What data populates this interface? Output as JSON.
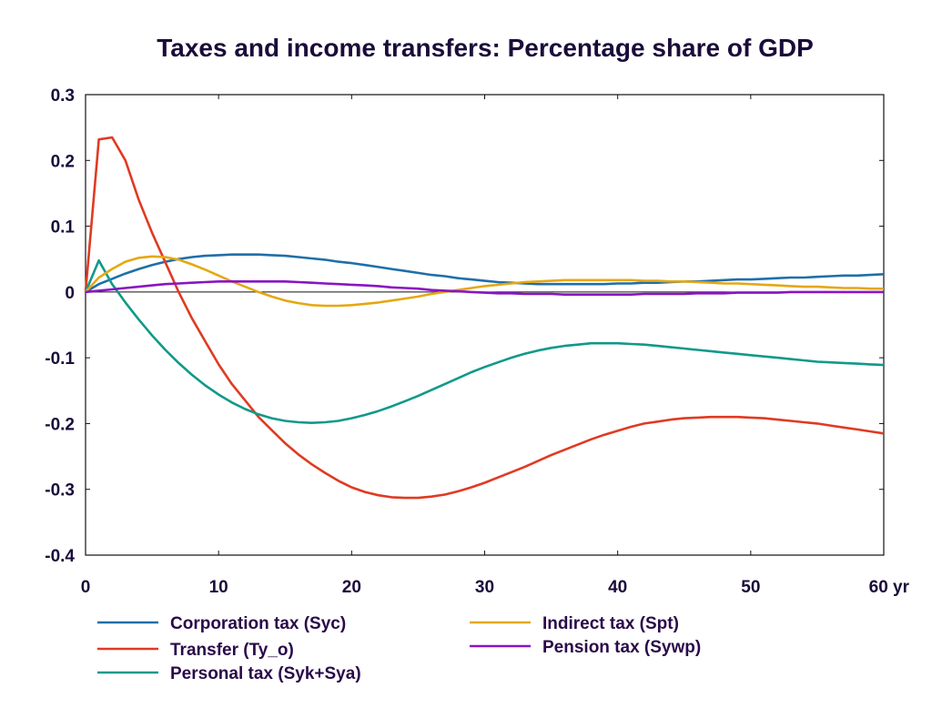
{
  "chart_data": {
    "type": "line",
    "title": "Taxes and income transfers: Percentage share of GDP",
    "xlabel": "",
    "ylabel": "",
    "xlim": [
      0,
      60
    ],
    "ylim": [
      -0.4,
      0.3
    ],
    "x_ticks": [
      0,
      10,
      20,
      30,
      40,
      50,
      60
    ],
    "x_tick_labels": [
      "0",
      "10",
      "20",
      "30",
      "40",
      "50",
      "60 yr"
    ],
    "y_ticks": [
      0.3,
      0.2,
      0.1,
      0,
      -0.1,
      -0.2,
      -0.3,
      -0.4
    ],
    "y_tick_labels": [
      "0.3",
      "0.2",
      "0.1",
      "0",
      "-0.1",
      "-0.2",
      "-0.3",
      "-0.4"
    ],
    "zero_line": true,
    "grid": false,
    "legend_position": "bottom",
    "x": [
      0,
      1,
      2,
      3,
      4,
      5,
      6,
      7,
      8,
      9,
      10,
      11,
      12,
      13,
      14,
      15,
      16,
      17,
      18,
      19,
      20,
      21,
      22,
      23,
      24,
      25,
      26,
      27,
      28,
      29,
      30,
      31,
      32,
      33,
      34,
      35,
      36,
      37,
      38,
      39,
      40,
      41,
      42,
      43,
      44,
      45,
      46,
      47,
      48,
      49,
      50,
      51,
      52,
      53,
      54,
      55,
      56,
      57,
      58,
      59,
      60
    ],
    "series": [
      {
        "name": "Corporation tax (Syc)",
        "color": "#1f6fa8",
        "values": [
          0,
          0.012,
          0.02,
          0.028,
          0.035,
          0.041,
          0.046,
          0.05,
          0.053,
          0.055,
          0.056,
          0.057,
          0.057,
          0.057,
          0.056,
          0.055,
          0.053,
          0.051,
          0.049,
          0.046,
          0.044,
          0.041,
          0.038,
          0.035,
          0.032,
          0.029,
          0.026,
          0.024,
          0.021,
          0.019,
          0.017,
          0.015,
          0.014,
          0.013,
          0.012,
          0.012,
          0.012,
          0.012,
          0.012,
          0.012,
          0.013,
          0.013,
          0.014,
          0.014,
          0.015,
          0.016,
          0.016,
          0.017,
          0.018,
          0.019,
          0.019,
          0.02,
          0.021,
          0.022,
          0.022,
          0.023,
          0.024,
          0.025,
          0.025,
          0.026,
          0.027
        ]
      },
      {
        "name": "Transfer (Ty_o)",
        "color": "#e03a22",
        "values": [
          0,
          0.232,
          0.235,
          0.2,
          0.14,
          0.09,
          0.045,
          0.0,
          -0.04,
          -0.075,
          -0.11,
          -0.14,
          -0.165,
          -0.19,
          -0.21,
          -0.23,
          -0.247,
          -0.262,
          -0.275,
          -0.287,
          -0.297,
          -0.304,
          -0.309,
          -0.312,
          -0.313,
          -0.313,
          -0.311,
          -0.308,
          -0.303,
          -0.297,
          -0.29,
          -0.282,
          -0.274,
          -0.266,
          -0.257,
          -0.248,
          -0.24,
          -0.232,
          -0.224,
          -0.217,
          -0.211,
          -0.205,
          -0.2,
          -0.197,
          -0.194,
          -0.192,
          -0.191,
          -0.19,
          -0.19,
          -0.19,
          -0.191,
          -0.192,
          -0.194,
          -0.196,
          -0.198,
          -0.2,
          -0.203,
          -0.206,
          -0.209,
          -0.212,
          -0.215
        ]
      },
      {
        "name": "Personal tax (Syk+Sya)",
        "color": "#10998a",
        "values": [
          0,
          0.048,
          0.012,
          -0.016,
          -0.042,
          -0.066,
          -0.088,
          -0.108,
          -0.126,
          -0.142,
          -0.156,
          -0.168,
          -0.178,
          -0.186,
          -0.192,
          -0.196,
          -0.198,
          -0.199,
          -0.198,
          -0.196,
          -0.192,
          -0.187,
          -0.181,
          -0.174,
          -0.166,
          -0.158,
          -0.149,
          -0.14,
          -0.131,
          -0.122,
          -0.114,
          -0.107,
          -0.1,
          -0.094,
          -0.089,
          -0.085,
          -0.082,
          -0.08,
          -0.078,
          -0.078,
          -0.078,
          -0.079,
          -0.08,
          -0.082,
          -0.084,
          -0.086,
          -0.088,
          -0.09,
          -0.092,
          -0.094,
          -0.096,
          -0.098,
          -0.1,
          -0.102,
          -0.104,
          -0.106,
          -0.107,
          -0.108,
          -0.109,
          -0.11,
          -0.111
        ]
      },
      {
        "name": "Indirect tax (Spt)",
        "color": "#e5a812",
        "values": [
          0,
          0.022,
          0.035,
          0.046,
          0.052,
          0.054,
          0.053,
          0.049,
          0.042,
          0.034,
          0.025,
          0.016,
          0.008,
          0.0,
          -0.007,
          -0.013,
          -0.017,
          -0.02,
          -0.021,
          -0.021,
          -0.02,
          -0.018,
          -0.016,
          -0.013,
          -0.01,
          -0.007,
          -0.003,
          0.0,
          0.003,
          0.006,
          0.009,
          0.011,
          0.013,
          0.015,
          0.016,
          0.017,
          0.018,
          0.018,
          0.018,
          0.018,
          0.018,
          0.018,
          0.017,
          0.017,
          0.016,
          0.016,
          0.015,
          0.014,
          0.013,
          0.013,
          0.012,
          0.011,
          0.01,
          0.009,
          0.008,
          0.008,
          0.007,
          0.006,
          0.006,
          0.005,
          0.005
        ]
      },
      {
        "name": "Pension tax (Sywp)",
        "color": "#8a14c2",
        "values": [
          0,
          0.002,
          0.004,
          0.006,
          0.008,
          0.01,
          0.012,
          0.013,
          0.014,
          0.015,
          0.016,
          0.016,
          0.016,
          0.016,
          0.016,
          0.016,
          0.015,
          0.014,
          0.013,
          0.012,
          0.011,
          0.01,
          0.009,
          0.007,
          0.006,
          0.005,
          0.003,
          0.002,
          0.001,
          0.0,
          -0.001,
          -0.002,
          -0.002,
          -0.003,
          -0.003,
          -0.003,
          -0.004,
          -0.004,
          -0.004,
          -0.004,
          -0.004,
          -0.004,
          -0.003,
          -0.003,
          -0.003,
          -0.003,
          -0.002,
          -0.002,
          -0.002,
          -0.001,
          -0.001,
          -0.001,
          -0.001,
          0.0,
          0.0,
          0.0,
          0.0,
          0.0,
          0.0,
          0.0,
          0.0
        ]
      }
    ]
  }
}
